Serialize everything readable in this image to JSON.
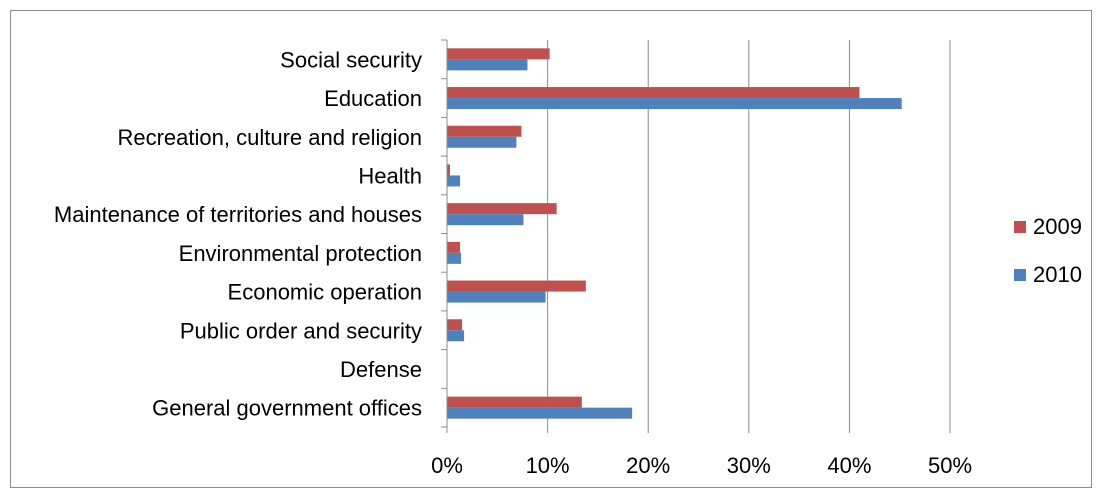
{
  "chart_data": {
    "type": "bar",
    "orientation": "horizontal",
    "categories": [
      "Social security",
      "Education",
      "Recreation, culture and religion",
      "Health",
      "Maintenance of territories and houses",
      "Environmental protection",
      "Economic operation",
      "Public order and security",
      "Defense",
      "General government offices"
    ],
    "series": [
      {
        "name": "2009",
        "color": "#c0504d",
        "values": [
          10.2,
          41.0,
          7.4,
          0.3,
          10.9,
          1.3,
          13.8,
          1.5,
          0.0,
          13.4
        ]
      },
      {
        "name": "2010",
        "color": "#4f81bd",
        "values": [
          8.0,
          45.2,
          6.9,
          1.3,
          7.6,
          1.4,
          9.8,
          1.7,
          0.0,
          18.4
        ]
      }
    ],
    "xlim": [
      0,
      50
    ],
    "xticks": [
      "0%",
      "10%",
      "20%",
      "30%",
      "40%",
      "50%"
    ],
    "grid": "vertical",
    "legend": "right"
  }
}
